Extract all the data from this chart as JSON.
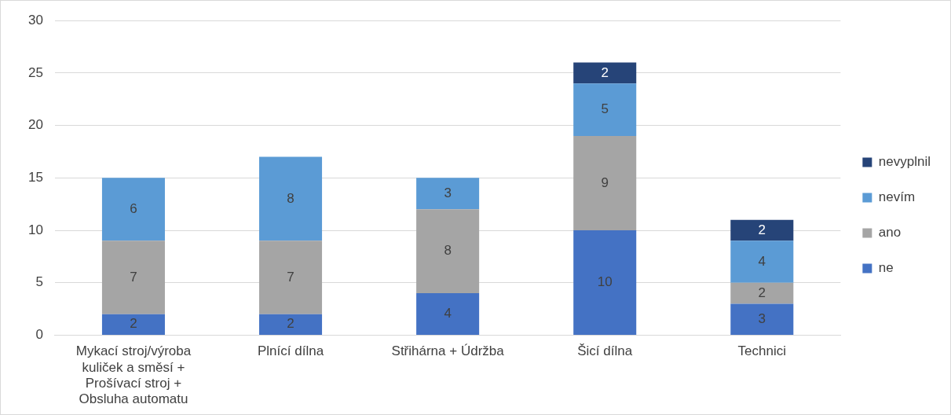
{
  "chart_data": {
    "type": "bar",
    "stacked": true,
    "categories": [
      "Mykací stroj/výroba kuliček a směsí + Prošívací stroj + Obsluha automatu",
      "Plnící dílna",
      "Střihárna + Údržba",
      "Šicí dílna",
      "Technici"
    ],
    "series": [
      {
        "name": "ne",
        "color": "#4472c4",
        "values": [
          2,
          2,
          4,
          10,
          3
        ]
      },
      {
        "name": "ano",
        "color": "#a5a5a5",
        "values": [
          7,
          7,
          8,
          9,
          2
        ]
      },
      {
        "name": "nevím",
        "color": "#5b9bd5",
        "values": [
          6,
          8,
          3,
          5,
          4
        ]
      },
      {
        "name": "nevyplnil",
        "color": "#264478",
        "values": [
          null,
          null,
          null,
          2,
          2
        ]
      }
    ],
    "ylim": [
      0,
      30
    ],
    "yticks": [
      0,
      5,
      10,
      15,
      20,
      25,
      30
    ],
    "grid": "y",
    "legend": "right",
    "data_labels": true
  }
}
